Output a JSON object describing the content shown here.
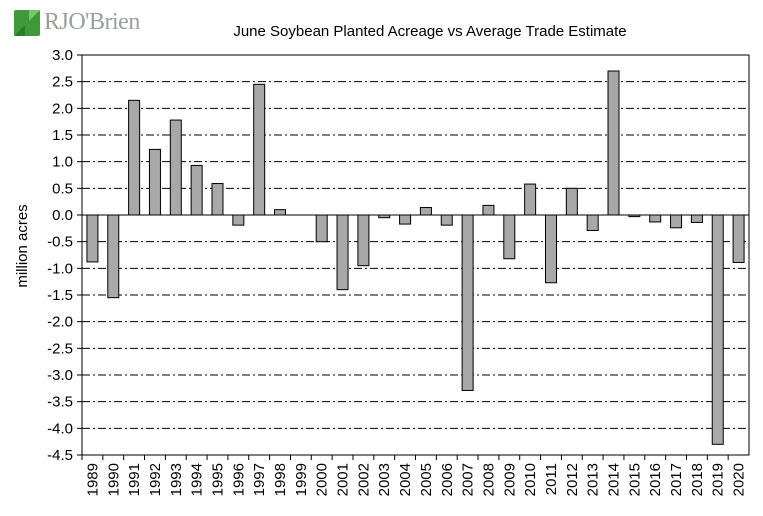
{
  "logo": {
    "text": "RJO'Brien",
    "colors": {
      "primary": "#3f9a3a",
      "light": "#7cc36f",
      "text": "#9aa09a"
    }
  },
  "chart_data": {
    "type": "bar",
    "title": "June Soybean Planted Acreage vs Average Trade Estimate",
    "xlabel": "",
    "ylabel": "million acres",
    "ylim": [
      -4.5,
      3.0
    ],
    "ytick_step": 0.5,
    "grid": "horizontal dash-dot",
    "bar_color": "#a8a8a8",
    "categories": [
      "1989",
      "1990",
      "1991",
      "1992",
      "1993",
      "1994",
      "1995",
      "1996",
      "1997",
      "1998",
      "1999",
      "2000",
      "2001",
      "2002",
      "2003",
      "2004",
      "2005",
      "2006",
      "2007",
      "2008",
      "2009",
      "2010",
      "2011",
      "2012",
      "2013",
      "2014",
      "2015",
      "2016",
      "2017",
      "2018",
      "2019",
      "2020"
    ],
    "values": [
      -0.88,
      -1.55,
      2.15,
      1.23,
      1.78,
      0.93,
      0.59,
      -0.19,
      2.45,
      0.1,
      0.0,
      -0.5,
      -1.4,
      -0.95,
      -0.05,
      -0.17,
      0.14,
      -0.19,
      -3.29,
      0.18,
      -0.82,
      0.58,
      -1.27,
      0.5,
      -0.29,
      2.7,
      -0.03,
      -0.13,
      -0.24,
      -0.14,
      -4.3,
      -0.89
    ]
  }
}
